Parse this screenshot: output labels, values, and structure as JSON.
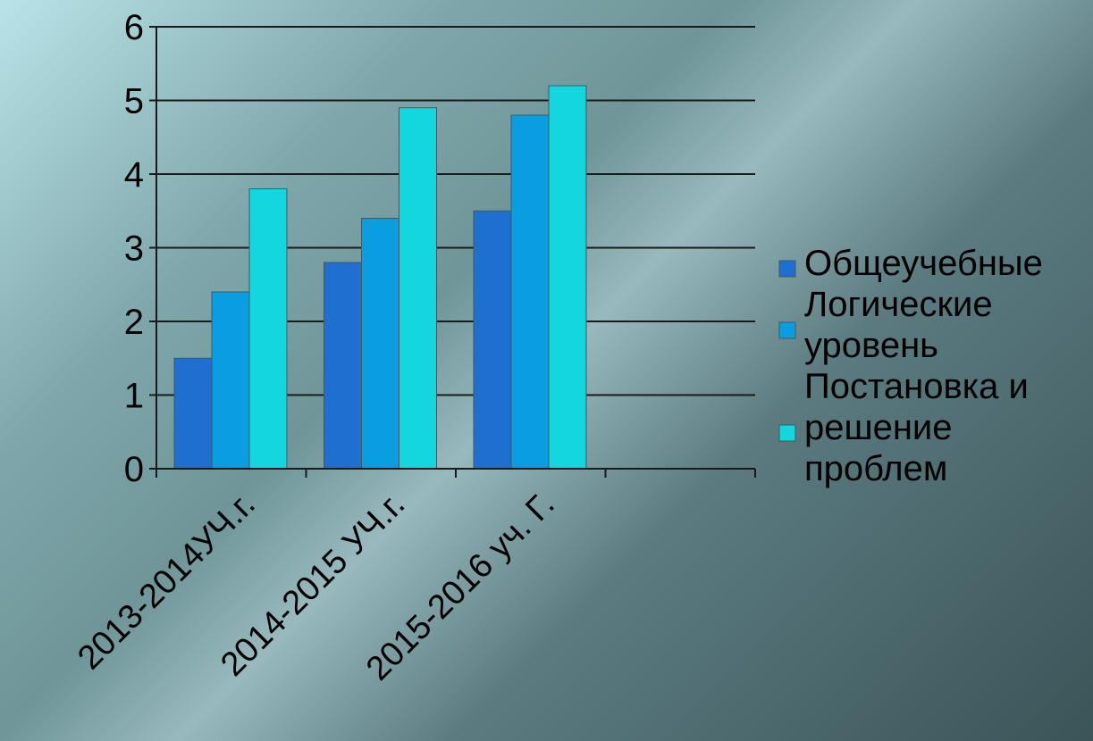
{
  "chart_data": {
    "type": "bar",
    "categories": [
      "2013-2014УЧ.г.",
      "2014-2015 УЧ.г.",
      "2015-2016 уч. Г."
    ],
    "series": [
      {
        "name": "Общеучебные",
        "values": [
          1.5,
          2.8,
          3.5
        ],
        "color": "#1e6fd0"
      },
      {
        "name": "Логические уровень",
        "values": [
          2.4,
          3.4,
          4.8
        ],
        "color": "#0a9ee0"
      },
      {
        "name": "Постановка и решение проблем",
        "values": [
          3.8,
          4.9,
          5.2
        ],
        "color": "#14d6de"
      }
    ],
    "legend_lines": [
      [
        "Общеучебные"
      ],
      [
        "Логические",
        "уровень"
      ],
      [
        "Постановка и",
        "решение",
        "проблем"
      ]
    ],
    "ylim": [
      0,
      6
    ],
    "yticks": [
      "0",
      "1",
      "2",
      "3",
      "4",
      "5",
      "6"
    ],
    "grid": true,
    "legend_position": "right"
  }
}
